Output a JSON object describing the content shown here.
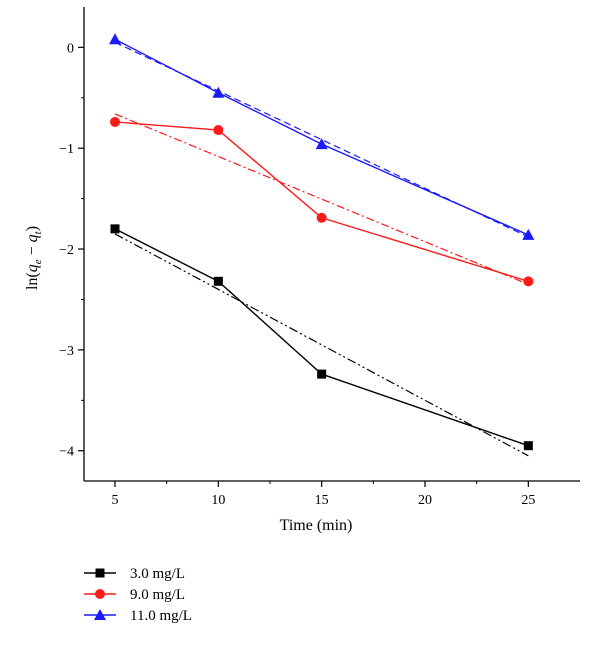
{
  "chart_data": {
    "type": "line",
    "xlabel": "Time (min)",
    "ylabel": "ln(q_e − q_t)",
    "xlim": [
      3.5,
      27.5
    ],
    "ylim": [
      -4.3,
      0.4
    ],
    "x_ticks": [
      5,
      10,
      15,
      20,
      25
    ],
    "y_ticks": [
      0,
      -1,
      -2,
      -3,
      -4
    ],
    "x": [
      5,
      10,
      15,
      25
    ],
    "grid": false,
    "legend_position": "bottom-left, below plot",
    "series": [
      {
        "name": "3.0 mg/L",
        "color": "#000000",
        "marker": "square",
        "values": [
          -1.8,
          -2.32,
          -3.24,
          -3.95
        ],
        "fit": {
          "style": "dash-dot-dot",
          "x": [
            5,
            25
          ],
          "y": [
            -1.85,
            -4.05
          ]
        }
      },
      {
        "name": "9.0 mg/L",
        "color": "#ff1a1a",
        "marker": "circle",
        "values": [
          -0.74,
          -0.82,
          -1.69,
          -2.32
        ],
        "fit": {
          "style": "dash-dot",
          "x": [
            5,
            25
          ],
          "y": [
            -0.66,
            -2.35
          ]
        }
      },
      {
        "name": "11.0 mg/L",
        "color": "#1a1aff",
        "marker": "triangle",
        "values": [
          0.08,
          -0.45,
          -0.96,
          -1.86
        ],
        "fit": {
          "style": "dashed",
          "x": [
            5,
            25
          ],
          "y": [
            0.05,
            -1.88
          ]
        }
      }
    ]
  }
}
